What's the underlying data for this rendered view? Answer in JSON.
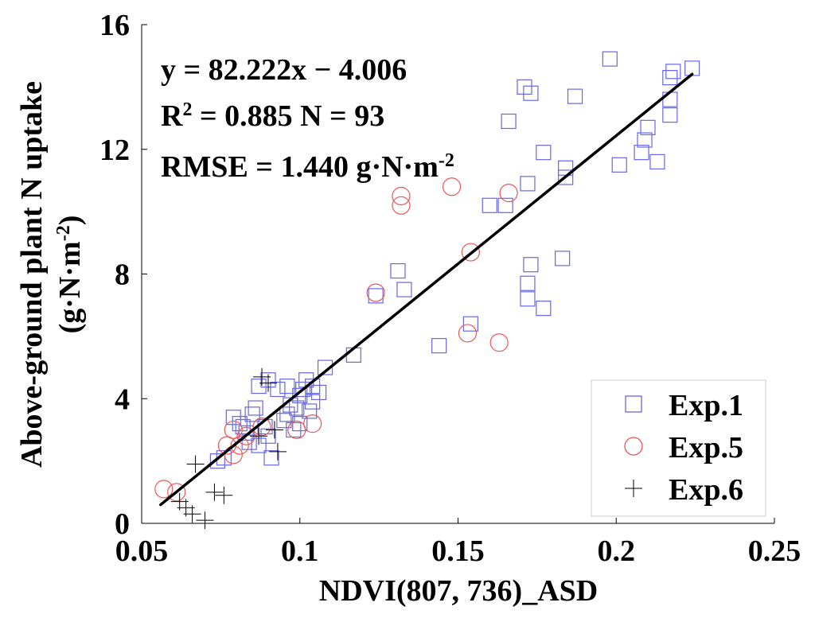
{
  "chart_data": {
    "type": "scatter",
    "xlabel": "NDVI(807, 736)_ASD",
    "ylabel_line1": "Above-ground plant N uptake",
    "ylabel_line2_prefix": "(g·N·m",
    "ylabel_line2_sup": "-2",
    "ylabel_line2_suffix": ")",
    "xlim": [
      0.05,
      0.25
    ],
    "ylim": [
      0,
      16
    ],
    "xticks": [
      0.05,
      0.1,
      0.15,
      0.2,
      0.25
    ],
    "xtick_labels": [
      "0.05",
      "0.1",
      "0.15",
      "0.2",
      "0.25"
    ],
    "yticks": [
      0,
      4,
      8,
      12,
      16
    ],
    "ytick_labels": [
      "0",
      "4",
      "8",
      "12",
      "16"
    ],
    "grid": false,
    "legend_position": "bottom-right",
    "annotations": {
      "equation": "y = 82.222x − 4.006",
      "r2_prefix": "R",
      "r2_sup": "2",
      "r2_rest": " = 0.885 N = 93",
      "rmse_prefix": "RMSE = 1.440 g·N·m",
      "rmse_sup": "-2"
    },
    "fit": {
      "slope": 82.222,
      "intercept": -4.006,
      "x_range": [
        0.056,
        0.224
      ]
    },
    "series": [
      {
        "name": "Exp.1",
        "marker": "square",
        "color": "#6666ee",
        "points": [
          [
            0.198,
            14.9
          ],
          [
            0.224,
            14.6
          ],
          [
            0.218,
            14.5
          ],
          [
            0.217,
            14.3
          ],
          [
            0.171,
            14.0
          ],
          [
            0.173,
            13.8
          ],
          [
            0.187,
            13.7
          ],
          [
            0.217,
            13.6
          ],
          [
            0.217,
            13.1
          ],
          [
            0.166,
            12.9
          ],
          [
            0.21,
            12.7
          ],
          [
            0.209,
            12.3
          ],
          [
            0.208,
            11.9
          ],
          [
            0.177,
            11.9
          ],
          [
            0.213,
            11.6
          ],
          [
            0.201,
            11.5
          ],
          [
            0.184,
            11.4
          ],
          [
            0.184,
            11.1
          ],
          [
            0.172,
            10.9
          ],
          [
            0.16,
            10.2
          ],
          [
            0.165,
            10.2
          ],
          [
            0.183,
            8.5
          ],
          [
            0.173,
            8.3
          ],
          [
            0.131,
            8.1
          ],
          [
            0.133,
            7.5
          ],
          [
            0.124,
            7.3
          ],
          [
            0.172,
            7.7
          ],
          [
            0.172,
            7.2
          ],
          [
            0.177,
            6.9
          ],
          [
            0.154,
            6.4
          ],
          [
            0.144,
            5.7
          ],
          [
            0.117,
            5.4
          ],
          [
            0.108,
            5.0
          ],
          [
            0.104,
            4.4
          ],
          [
            0.106,
            4.2
          ],
          [
            0.102,
            4.6
          ],
          [
            0.101,
            4.3
          ],
          [
            0.096,
            4.4
          ],
          [
            0.093,
            4.3
          ],
          [
            0.09,
            4.6
          ],
          [
            0.087,
            4.4
          ],
          [
            0.1,
            4.1
          ],
          [
            0.104,
            3.9
          ],
          [
            0.097,
            3.8
          ],
          [
            0.099,
            3.7
          ],
          [
            0.103,
            3.6
          ],
          [
            0.096,
            3.5
          ],
          [
            0.095,
            3.3
          ],
          [
            0.085,
            3.5
          ],
          [
            0.079,
            3.4
          ],
          [
            0.081,
            3.2
          ],
          [
            0.089,
            3.1
          ],
          [
            0.083,
            2.9
          ],
          [
            0.084,
            2.6
          ],
          [
            0.09,
            2.8
          ],
          [
            0.091,
            2.1
          ],
          [
            0.076,
            2.1
          ],
          [
            0.074,
            2.0
          ],
          [
            0.087,
            2.5
          ],
          [
            0.082,
            3.1
          ],
          [
            0.086,
            3.7
          ],
          [
            0.1,
            3.2
          ],
          [
            0.098,
            3.0
          ]
        ]
      },
      {
        "name": "Exp.5",
        "marker": "circle",
        "color": "#ee5555",
        "points": [
          [
            0.132,
            10.5
          ],
          [
            0.148,
            10.8
          ],
          [
            0.166,
            10.6
          ],
          [
            0.132,
            10.2
          ],
          [
            0.154,
            8.7
          ],
          [
            0.124,
            7.4
          ],
          [
            0.153,
            6.1
          ],
          [
            0.163,
            5.8
          ],
          [
            0.099,
            3.0
          ],
          [
            0.104,
            3.2
          ],
          [
            0.088,
            3.1
          ],
          [
            0.079,
            3.0
          ],
          [
            0.083,
            2.8
          ],
          [
            0.081,
            2.5
          ],
          [
            0.077,
            2.5
          ],
          [
            0.079,
            2.2
          ],
          [
            0.057,
            1.1
          ],
          [
            0.061,
            1.0
          ]
        ]
      },
      {
        "name": "Exp.6",
        "marker": "plus",
        "color": "#000000",
        "points": [
          [
            0.067,
            1.9
          ],
          [
            0.073,
            1.0
          ],
          [
            0.076,
            0.9
          ],
          [
            0.062,
            0.7
          ],
          [
            0.064,
            0.5
          ],
          [
            0.066,
            0.3
          ],
          [
            0.07,
            0.1
          ],
          [
            0.088,
            4.7
          ],
          [
            0.09,
            4.5
          ],
          [
            0.093,
            2.3
          ],
          [
            0.087,
            2.8
          ],
          [
            0.092,
            3.0
          ]
        ]
      }
    ]
  }
}
